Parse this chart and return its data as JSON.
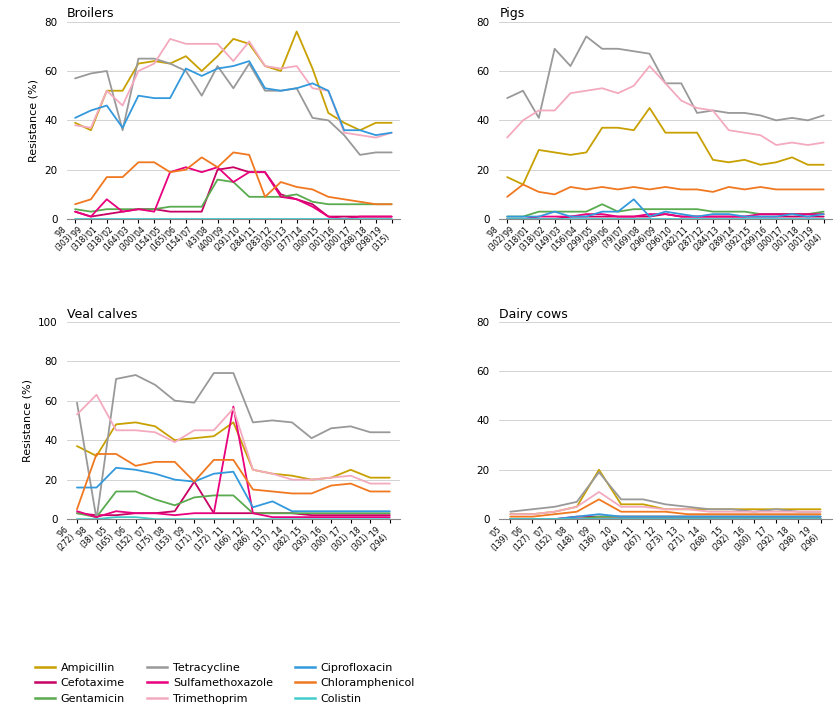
{
  "broilers": {
    "title": "Broilers",
    "ylim": [
      0,
      80
    ],
    "yticks": [
      0,
      20,
      40,
      60,
      80
    ],
    "years": [
      "'98\n(303)",
      "'99\n(318)",
      "'01\n(318)",
      "'02\n(164)",
      "'03\n(300)",
      "'04\n(154)",
      "'05\n(165)",
      "'06\n(154)",
      "'07\n(43)",
      "'08\n(400)",
      "'09\n(291)",
      "'10\n(284)",
      "'11\n(283)",
      "'12\n(301)",
      "'13\n(377)",
      "'14\n(300)",
      "'15\n(301)",
      "'16\n(300)",
      "'17\n(298)",
      "'18\n(298)",
      "'19\n(315)"
    ],
    "Ampicillin": [
      39,
      36,
      52,
      52,
      63,
      64,
      63,
      66,
      60,
      66,
      73,
      71,
      62,
      60,
      76,
      61,
      43,
      39,
      36,
      39,
      39
    ],
    "Cefotaxime": [
      3,
      1,
      2,
      3,
      4,
      4,
      3,
      3,
      3,
      20,
      21,
      19,
      19,
      10,
      8,
      6,
      1,
      1,
      1,
      1,
      1
    ],
    "Gentamicin": [
      4,
      3,
      4,
      4,
      4,
      4,
      5,
      5,
      5,
      16,
      15,
      9,
      9,
      9,
      10,
      7,
      6,
      6,
      6,
      6,
      6
    ],
    "Tetracycline": [
      57,
      59,
      60,
      36,
      65,
      65,
      63,
      60,
      50,
      62,
      53,
      63,
      52,
      52,
      53,
      41,
      40,
      34,
      26,
      27,
      27
    ],
    "Sulfamethoxazole": [
      3,
      1,
      8,
      3,
      4,
      3,
      19,
      21,
      19,
      21,
      15,
      19,
      19,
      9,
      8,
      5,
      1,
      0,
      1,
      1,
      1
    ],
    "Trimethoprim": [
      38,
      37,
      52,
      46,
      60,
      63,
      73,
      71,
      71,
      71,
      64,
      72,
      62,
      61,
      62,
      53,
      52,
      35,
      34,
      33,
      35
    ],
    "Ciprofloxacin": [
      41,
      44,
      46,
      37,
      50,
      49,
      49,
      61,
      58,
      61,
      62,
      64,
      53,
      52,
      53,
      55,
      52,
      36,
      36,
      34,
      35
    ],
    "Chloramphenicol": [
      6,
      8,
      17,
      17,
      23,
      23,
      19,
      20,
      25,
      21,
      27,
      26,
      9,
      15,
      13,
      12,
      9,
      8,
      7,
      6,
      6
    ],
    "Colistin": [
      0,
      0,
      0,
      0,
      0,
      0,
      0,
      0,
      0,
      0,
      0,
      0,
      0,
      0,
      0,
      0,
      0,
      0,
      0,
      0,
      0
    ]
  },
  "pigs": {
    "title": "Pigs",
    "ylim": [
      0,
      80
    ],
    "yticks": [
      0,
      20,
      40,
      60,
      80
    ],
    "years": [
      "'98\n(302)",
      "'99\n(318)",
      "'01\n(318)",
      "'02\n(149)",
      "'03\n(156)",
      "'04\n(299)",
      "'05\n(299)",
      "'06\n(79)",
      "'07\n(169)",
      "'08\n(296)",
      "'09\n(296)",
      "'10\n(282)",
      "'11\n(287)",
      "'12\n(284)",
      "'13\n(289)",
      "'14\n(392)",
      "'15\n(299)",
      "'16\n(300)",
      "'17\n(301)",
      "'18\n(301)",
      "'19\n(304)"
    ],
    "Ampicillin": [
      17,
      14,
      28,
      27,
      26,
      27,
      37,
      37,
      36,
      45,
      35,
      35,
      35,
      24,
      23,
      24,
      22,
      23,
      25,
      22,
      22
    ],
    "Cefotaxime": [
      0,
      0,
      0,
      0,
      1,
      1,
      1,
      1,
      1,
      1,
      2,
      1,
      1,
      1,
      1,
      1,
      1,
      1,
      1,
      1,
      1
    ],
    "Gentamicin": [
      1,
      1,
      3,
      3,
      3,
      3,
      6,
      3,
      4,
      4,
      4,
      4,
      4,
      3,
      3,
      3,
      2,
      2,
      2,
      2,
      3
    ],
    "Tetracycline": [
      49,
      52,
      41,
      69,
      62,
      74,
      69,
      69,
      68,
      67,
      55,
      55,
      43,
      44,
      43,
      43,
      42,
      40,
      41,
      40,
      42
    ],
    "Sulfamethoxazole": [
      0,
      0,
      1,
      1,
      1,
      2,
      2,
      1,
      1,
      2,
      2,
      1,
      1,
      1,
      1,
      1,
      2,
      2,
      2,
      2,
      2
    ],
    "Trimethoprim": [
      33,
      40,
      44,
      44,
      51,
      52,
      53,
      51,
      54,
      62,
      55,
      48,
      45,
      44,
      36,
      35,
      34,
      30,
      31,
      30,
      31
    ],
    "Ciprofloxacin": [
      1,
      1,
      1,
      3,
      1,
      1,
      3,
      3,
      8,
      1,
      3,
      2,
      1,
      2,
      2,
      1,
      1,
      1,
      2,
      1,
      2
    ],
    "Chloramphenicol": [
      9,
      14,
      11,
      10,
      13,
      12,
      13,
      12,
      13,
      12,
      13,
      12,
      12,
      11,
      13,
      12,
      13,
      12,
      12,
      12,
      12
    ],
    "Colistin": [
      0,
      0,
      0,
      0,
      0,
      0,
      0,
      0,
      0,
      0,
      0,
      0,
      0,
      0,
      0,
      0,
      0,
      0,
      0,
      0,
      0
    ]
  },
  "veal_calves": {
    "title": "Veal calves",
    "ylim": [
      0,
      100
    ],
    "yticks": [
      0,
      20,
      40,
      60,
      80,
      100
    ],
    "years": [
      "'96\n(272)",
      "'98\n(38)",
      "'05\n(165)",
      "'06\n(152)",
      "'07\n(175)",
      "'08\n(153)",
      "'09\n(171)",
      "'10\n(172)",
      "'11\n(166)",
      "'12\n(286)",
      "'13\n(317)",
      "'14\n(282)",
      "'15\n(293)",
      "'16\n(300)",
      "'17\n(301)",
      "'18\n(301)",
      "'19\n(294)"
    ],
    "Ampicillin": [
      37,
      32,
      48,
      49,
      47,
      40,
      41,
      42,
      49,
      25,
      23,
      22,
      20,
      21,
      25,
      21,
      21
    ],
    "Cefotaxime": [
      3,
      2,
      2,
      3,
      3,
      4,
      19,
      3,
      3,
      3,
      3,
      3,
      2,
      2,
      2,
      2,
      2
    ],
    "Gentamicin": [
      3,
      1,
      14,
      14,
      10,
      7,
      11,
      12,
      12,
      3,
      3,
      3,
      3,
      3,
      3,
      3,
      3
    ],
    "Tetracycline": [
      59,
      0,
      71,
      73,
      68,
      60,
      59,
      74,
      74,
      49,
      50,
      49,
      41,
      46,
      47,
      44,
      44
    ],
    "Sulfamethoxazole": [
      4,
      1,
      4,
      3,
      3,
      2,
      3,
      3,
      57,
      3,
      1,
      1,
      1,
      1,
      1,
      1,
      1
    ],
    "Trimethoprim": [
      53,
      63,
      45,
      45,
      44,
      39,
      45,
      45,
      56,
      25,
      23,
      20,
      20,
      21,
      22,
      18,
      18
    ],
    "Ciprofloxacin": [
      16,
      16,
      26,
      25,
      23,
      20,
      19,
      23,
      24,
      6,
      9,
      4,
      4,
      4,
      4,
      4,
      4
    ],
    "Chloramphenicol": [
      5,
      33,
      33,
      27,
      29,
      29,
      19,
      30,
      30,
      15,
      14,
      13,
      13,
      17,
      18,
      14,
      14
    ],
    "Colistin": [
      0,
      0,
      1,
      1,
      0,
      0,
      0,
      0,
      0,
      0,
      0,
      0,
      0,
      0,
      0,
      0,
      0
    ]
  },
  "dairy_cows": {
    "title": "Dairy cows",
    "ylim": [
      0,
      80
    ],
    "yticks": [
      0,
      20,
      40,
      60,
      80
    ],
    "years": [
      "'05\n(139)",
      "'06\n(127)",
      "'07\n(152)",
      "'08\n(148)",
      "'09\n(136)",
      "'10\n(264)",
      "'11\n(267)",
      "'12\n(273)",
      "'13\n(271)",
      "'14\n(268)",
      "'15\n(292)",
      "'16\n(300)",
      "'17\n(292)",
      "'18\n(298)",
      "'19\n(296)"
    ],
    "Ampicillin": [
      2,
      2,
      3,
      5,
      20,
      6,
      6,
      4,
      4,
      4,
      4,
      4,
      4,
      4,
      4
    ],
    "Cefotaxime": [
      0,
      0,
      0,
      1,
      1,
      1,
      1,
      1,
      1,
      1,
      1,
      1,
      1,
      1,
      1
    ],
    "Gentamicin": [
      0,
      0,
      0,
      0,
      1,
      1,
      1,
      1,
      1,
      1,
      1,
      1,
      1,
      1,
      1
    ],
    "Tetracycline": [
      3,
      4,
      5,
      7,
      19,
      8,
      8,
      6,
      5,
      4,
      4,
      3,
      4,
      3,
      3
    ],
    "Sulfamethoxazole": [
      0,
      0,
      0,
      0,
      0,
      0,
      0,
      0,
      0,
      0,
      0,
      0,
      0,
      0,
      0
    ],
    "Trimethoprim": [
      2,
      2,
      3,
      5,
      11,
      5,
      5,
      4,
      4,
      3,
      3,
      3,
      3,
      3,
      3
    ],
    "Ciprofloxacin": [
      0,
      0,
      0,
      1,
      2,
      1,
      1,
      1,
      1,
      1,
      1,
      1,
      1,
      1,
      1
    ],
    "Chloramphenicol": [
      1,
      1,
      2,
      3,
      8,
      3,
      3,
      3,
      2,
      2,
      2,
      2,
      2,
      2,
      2
    ],
    "Colistin": [
      0,
      0,
      0,
      0,
      0,
      0,
      0,
      0,
      0,
      0,
      0,
      0,
      0,
      0,
      0
    ]
  },
  "colors": {
    "Ampicillin": "#C8A000",
    "Cefotaxime": "#C80064",
    "Gentamicin": "#5AAB50",
    "Tetracycline": "#999999",
    "Sulfamethoxazole": "#E8007C",
    "Trimethoprim": "#F4AABE",
    "Ciprofloxacin": "#3399DD",
    "Chloramphenicol": "#F07820",
    "Colistin": "#44CCCC"
  },
  "legend_order": [
    "Ampicillin",
    "Cefotaxime",
    "Gentamicin",
    "Tetracycline",
    "Sulfamethoxazole",
    "Trimethoprim",
    "Ciprofloxacin",
    "Chloramphenicol",
    "Colistin"
  ],
  "ylabel": "Resistance (%)"
}
